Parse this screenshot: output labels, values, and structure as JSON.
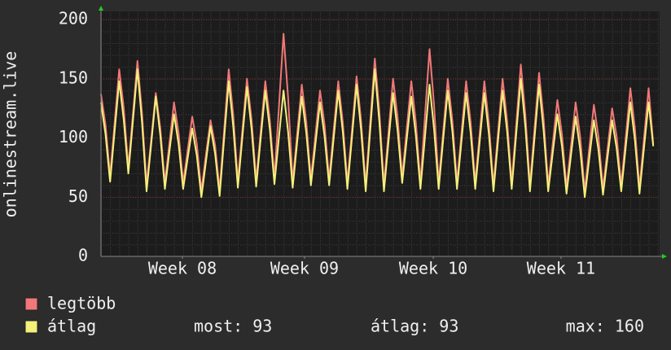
{
  "chart_data": {
    "type": "line",
    "ylabel": "onlinestream.live",
    "xlim": [
      0,
      30.6
    ],
    "ylim": [
      0,
      200
    ],
    "yticks": [
      0,
      50,
      100,
      150,
      200
    ],
    "xticks": [
      {
        "value": 4.46,
        "label": "Week 08"
      },
      {
        "value": 11.15,
        "label": "Week 09"
      },
      {
        "value": 18.2,
        "label": "Week 10"
      },
      {
        "value": 25.2,
        "label": "Week 11"
      }
    ],
    "grid": true,
    "x": [
      0,
      0.25,
      0.5,
      0.75,
      1,
      1.25,
      1.5,
      1.75,
      2,
      2.25,
      2.5,
      2.75,
      3,
      3.25,
      3.5,
      3.75,
      4,
      4.25,
      4.5,
      4.75,
      5,
      5.25,
      5.5,
      5.75,
      6,
      6.25,
      6.5,
      6.75,
      7,
      7.25,
      7.5,
      7.75,
      8,
      8.25,
      8.5,
      8.75,
      9,
      9.25,
      9.5,
      9.75,
      10,
      10.25,
      10.5,
      10.75,
      11,
      11.25,
      11.5,
      11.75,
      12,
      12.25,
      12.5,
      12.75,
      13,
      13.25,
      13.5,
      13.75,
      14,
      14.25,
      14.5,
      14.75,
      15,
      15.25,
      15.5,
      15.75,
      16,
      16.25,
      16.5,
      16.75,
      17,
      17.25,
      17.5,
      17.75,
      18,
      18.25,
      18.5,
      18.75,
      19,
      19.25,
      19.5,
      19.75,
      20,
      20.25,
      20.5,
      20.75,
      21,
      21.25,
      21.5,
      21.75,
      22,
      22.25,
      22.5,
      22.75,
      23,
      23.25,
      23.5,
      23.75,
      24,
      24.25,
      24.5,
      24.75,
      25,
      25.25,
      25.5,
      25.75,
      26,
      26.25,
      26.5,
      26.75,
      27,
      27.25,
      27.5,
      27.75,
      28,
      28.25,
      28.5,
      28.75,
      29,
      29.25,
      29.5,
      29.75,
      30,
      30.25
    ],
    "series": [
      {
        "name": "legtöbb",
        "color": "#f07878",
        "values": [
          137,
          111,
          68,
          113,
          158,
          125,
          75,
          120,
          165,
          121,
          60,
          99,
          138,
          108,
          62,
          96,
          130,
          104,
          62,
          90,
          118,
          95,
          55,
          86,
          115,
          94,
          56,
          107,
          158,
          119,
          63,
          107,
          150,
          115,
          64,
          106,
          148,
          115,
          66,
          127,
          188,
          134,
          63,
          104,
          145,
          113,
          65,
          103,
          140,
          111,
          65,
          107,
          148,
          113,
          62,
          107,
          152,
          114,
          60,
          114,
          167,
          122,
          60,
          105,
          150,
          117,
          67,
          108,
          148,
          113,
          62,
          119,
          175,
          127,
          62,
          106,
          150,
          114,
          62,
          105,
          148,
          113,
          62,
          105,
          148,
          112,
          60,
          105,
          150,
          114,
          62,
          112,
          162,
          119,
          60,
          108,
          155,
          116,
          60,
          96,
          132,
          103,
          58,
          94,
          130,
          101,
          55,
          92,
          128,
          101,
          57,
          91,
          125,
          101,
          60,
          101,
          142,
          108,
          58,
          100,
          142,
          95
        ]
      },
      {
        "name": "átlag",
        "color": "#f4f07a",
        "values": [
          130,
          103,
          63,
          106,
          148,
          115,
          70,
          114,
          158,
          113,
          55,
          95,
          135,
          102,
          57,
          89,
          120,
          95,
          57,
          83,
          108,
          85,
          50,
          80,
          110,
          87,
          51,
          100,
          148,
          109,
          58,
          101,
          143,
          107,
          59,
          100,
          140,
          107,
          61,
          101,
          140,
          105,
          58,
          97,
          135,
          104,
          60,
          95,
          130,
          101,
          60,
          100,
          140,
          105,
          57,
          101,
          145,
          106,
          55,
          107,
          158,
          113,
          55,
          97,
          138,
          106,
          62,
          99,
          135,
          102,
          57,
          101,
          145,
          107,
          57,
          99,
          140,
          105,
          57,
          98,
          138,
          104,
          57,
          98,
          138,
          103,
          55,
          98,
          140,
          105,
          57,
          104,
          150,
          109,
          55,
          100,
          145,
          106,
          55,
          88,
          120,
          93,
          53,
          86,
          118,
          90,
          50,
          83,
          115,
          90,
          52,
          84,
          115,
          91,
          55,
          93,
          130,
          98,
          53,
          92,
          130,
          93
        ]
      }
    ],
    "stats": [
      "most: 93",
      "átlag: 93",
      "max: 160"
    ]
  }
}
